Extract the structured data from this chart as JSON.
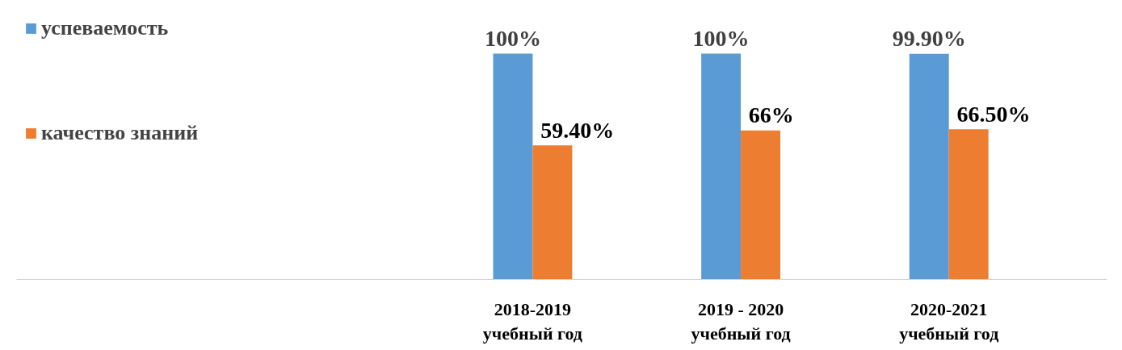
{
  "chart_data": {
    "type": "bar",
    "categories": [
      "2018-2019\nучебный год",
      "2019 - 2020\nучебный год",
      "2020-2021\nучебный год"
    ],
    "series": [
      {
        "name": "успеваемость",
        "color": "#5b9bd5",
        "values": [
          100,
          100,
          99.9
        ],
        "value_labels": [
          "100%",
          "100%",
          "99.90%"
        ]
      },
      {
        "name": "качество знаний",
        "color": "#ed7d31",
        "values": [
          59.4,
          66,
          66.5
        ],
        "value_labels": [
          "59.40%",
          "66%",
          "66.50%"
        ]
      }
    ],
    "legend": "left",
    "grid": false,
    "tick_labels": "x"
  }
}
